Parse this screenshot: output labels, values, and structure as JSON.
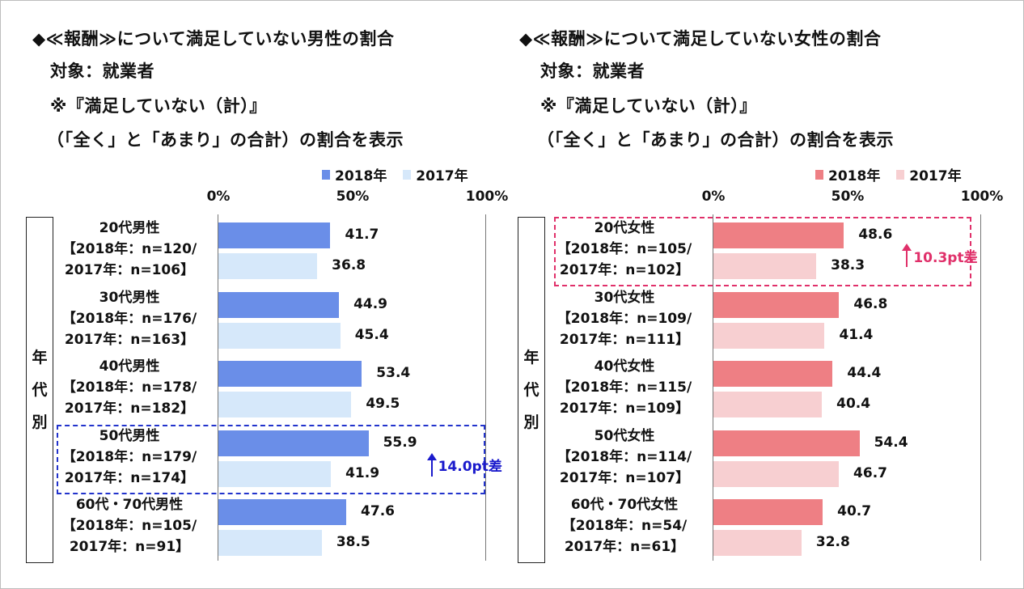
{
  "chart_data": [
    {
      "type": "bar",
      "orientation": "horizontal",
      "heading": [
        "◆≪報酬≫について満足していない男性の割合",
        "対象：就業者",
        "※『満足していない（計）』",
        "（「全く」と「あまり」の合計）の割合を表示"
      ],
      "axis_group_label": [
        "年",
        "代",
        "別"
      ],
      "xlim": [
        0,
        100
      ],
      "x_ticks": [
        "0%",
        "50%",
        "100%"
      ],
      "legend": [
        "2018年",
        "2017年"
      ],
      "legend_placement": "top",
      "colors": {
        "2018": "#6a8ee8",
        "2017": "#d6e8fa"
      },
      "categories": [
        {
          "name": "20代男性",
          "n2018": "【2018年：n=120/",
          "n2017": "2017年：n=106】"
        },
        {
          "name": "30代男性",
          "n2018": "【2018年：n=176/",
          "n2017": "2017年：n=163】"
        },
        {
          "name": "40代男性",
          "n2018": "【2018年：n=178/",
          "n2017": "2017年：n=182】"
        },
        {
          "name": "50代男性",
          "n2018": "【2018年：n=179/",
          "n2017": "2017年：n=174】"
        },
        {
          "name": "60代・70代男性",
          "n2018": "【2018年：n=105/",
          "n2017": "2017年：n=91】"
        }
      ],
      "series": [
        {
          "name": "2018年",
          "values": [
            41.7,
            44.9,
            53.4,
            55.9,
            47.6
          ]
        },
        {
          "name": "2017年",
          "values": [
            36.8,
            45.4,
            49.5,
            41.9,
            38.5
          ]
        }
      ],
      "annotation": {
        "category_index": 3,
        "text": "14.0pt差",
        "color": "#1a1acc"
      }
    },
    {
      "type": "bar",
      "orientation": "horizontal",
      "heading": [
        "◆≪報酬≫について満足していない女性の割合",
        "対象：就業者",
        "※『満足していない（計）』",
        "（「全く」と「あまり」の合計）の割合を表示"
      ],
      "axis_group_label": [
        "年",
        "代",
        "別"
      ],
      "xlim": [
        0,
        100
      ],
      "x_ticks": [
        "0%",
        "50%",
        "100%"
      ],
      "legend": [
        "2018年",
        "2017年"
      ],
      "legend_placement": "top",
      "colors": {
        "2018": "#ee7f84",
        "2017": "#f7cfd1"
      },
      "categories": [
        {
          "name": "20代女性",
          "n2018": "【2018年：n=105/",
          "n2017": "2017年：n=102】"
        },
        {
          "name": "30代女性",
          "n2018": "【2018年：n=109/",
          "n2017": "2017年：n=111】"
        },
        {
          "name": "40代女性",
          "n2018": "【2018年：n=115/",
          "n2017": "2017年：n=109】"
        },
        {
          "name": "50代女性",
          "n2018": "【2018年：n=114/",
          "n2017": "2017年：n=107】"
        },
        {
          "name": "60代・70代女性",
          "n2018": "【2018年：n=54/",
          "n2017": "2017年：n=61】"
        }
      ],
      "series": [
        {
          "name": "2018年",
          "values": [
            48.6,
            46.8,
            44.4,
            54.4,
            40.7
          ]
        },
        {
          "name": "2017年",
          "values": [
            38.3,
            41.4,
            40.4,
            46.7,
            32.8
          ]
        }
      ],
      "annotation": {
        "category_index": 0,
        "text": "10.3pt差",
        "color": "#e0306a"
      }
    }
  ]
}
